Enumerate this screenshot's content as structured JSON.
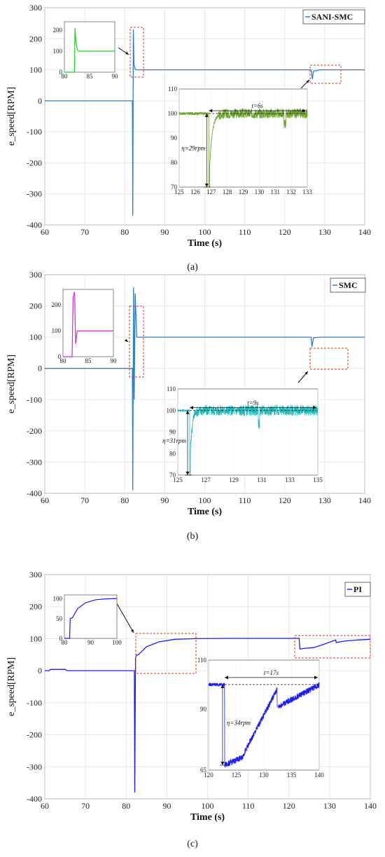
{
  "colors": {
    "sani_smc": "#2a7fd0",
    "smc": "#2a7fd0",
    "pi": "#1a1aff",
    "highlight": "#e8302a"
  },
  "chart_data": [
    {
      "type": "line",
      "caption": "(a)",
      "xlabel": "Time (s)",
      "ylabel": "e_speed[RPM]",
      "xlim": [
        60,
        140
      ],
      "ylim": [
        -400,
        300
      ],
      "xticks": [
        "60",
        "70",
        "80",
        "90",
        "100",
        "110",
        "120",
        "130",
        "140"
      ],
      "yticks": [
        "300",
        "200",
        "100",
        "0",
        "-100",
        "-200",
        "-300",
        "-400"
      ],
      "legend": "SANI-SMC",
      "legend_position": "top-right",
      "grid": true,
      "series": [
        {
          "name": "SANI-SMC",
          "x": [
            60,
            81.9,
            82.0,
            82.15,
            82.3,
            82.6,
            83,
            126.6,
            126.9,
            127.2,
            129,
            131,
            133,
            140
          ],
          "y": [
            0,
            0,
            -370,
            230,
            118,
            102,
            100,
            100,
            70,
            96,
            100,
            100,
            100,
            100
          ]
        }
      ],
      "inset_left": {
        "xlim": [
          80,
          90
        ],
        "ylim": [
          0,
          240
        ],
        "xticks": [
          "80",
          "85",
          "90"
        ],
        "yticks": [
          "0",
          "100",
          "200"
        ],
        "x": [
          80,
          82,
          82.1,
          82.3,
          82.6,
          83,
          90
        ],
        "y": [
          0,
          0,
          210,
          140,
          104,
          100,
          100
        ],
        "color": "#22cc22"
      },
      "inset_zoom": {
        "xlim": [
          125,
          133
        ],
        "ylim": [
          70,
          110
        ],
        "xticks": [
          "125",
          "126",
          "127",
          "128",
          "129",
          "130",
          "131",
          "132",
          "133"
        ],
        "yticks": [
          "110",
          "100",
          "90",
          "80",
          "70"
        ],
        "color": "#6aa02a",
        "annotations": [
          "t=6s",
          "η=29rpm"
        ]
      }
    },
    {
      "type": "line",
      "caption": "(b)",
      "xlabel": "Time (s)",
      "ylabel": "e_speed[RPM]",
      "xlim": [
        60,
        140
      ],
      "ylim": [
        -400,
        300
      ],
      "xticks": [
        "60",
        "70",
        "80",
        "90",
        "100",
        "110",
        "120",
        "130",
        "140"
      ],
      "yticks": [
        "300",
        "200",
        "100",
        "0",
        "-100",
        "-200",
        "-300",
        "-400"
      ],
      "legend": "SMC",
      "legend_position": "top-right",
      "grid": true,
      "series": [
        {
          "name": "SMC",
          "x": [
            60,
            81.9,
            82.0,
            82.2,
            82.35,
            82.6,
            83,
            126.6,
            126.8,
            127.2,
            129,
            131,
            135,
            140
          ],
          "y": [
            0,
            0,
            -390,
            260,
            -100,
            240,
            100,
            100,
            69,
            98,
            100,
            100,
            100,
            100
          ]
        }
      ],
      "inset_left": {
        "xlim": [
          80,
          90
        ],
        "ylim": [
          0,
          260
        ],
        "xticks": [
          "80",
          "85",
          "90"
        ],
        "yticks": [
          "0",
          "100",
          "200"
        ],
        "x": [
          80,
          81.8,
          82.0,
          82.3,
          82.5,
          82.8,
          90
        ],
        "y": [
          0,
          0,
          230,
          250,
          50,
          100,
          100
        ],
        "color": "#dd22dd"
      },
      "inset_zoom": {
        "xlim": [
          125,
          135
        ],
        "ylim": [
          70,
          110
        ],
        "xticks": [
          "125",
          "127",
          "129",
          "131",
          "133",
          "135"
        ],
        "yticks": [
          "110",
          "100",
          "90",
          "80",
          "70"
        ],
        "color": "#20b8b8",
        "annotations": [
          "t=9s",
          "η=31rpm"
        ]
      }
    },
    {
      "type": "line",
      "caption": "(c)",
      "xlabel": "Time (s)",
      "ylabel": "e_speed[RPM]",
      "xlim": [
        60,
        140
      ],
      "ylim": [
        -400,
        300
      ],
      "xticks": [
        "60",
        "70",
        "80",
        "90",
        "100",
        "110",
        "120",
        "130",
        "140"
      ],
      "yticks": [
        "300",
        "200",
        "100",
        "0",
        "-100",
        "-200",
        "-300",
        "-400"
      ],
      "legend": "PI",
      "legend_position": "top-right",
      "grid": true,
      "series": [
        {
          "name": "PI",
          "x": [
            60,
            61,
            61.5,
            65,
            65.5,
            82.0,
            82.1,
            82.3,
            82.5,
            83,
            85,
            88,
            92,
            97,
            105,
            122.5,
            122.7,
            124,
            126,
            128,
            131.5,
            131.6,
            134,
            137,
            140
          ],
          "y": [
            0,
            0,
            4,
            4,
            0,
            0,
            -380,
            40,
            48,
            50,
            75,
            90,
            98,
            100,
            101,
            101,
            68,
            70,
            72,
            80,
            96,
            88,
            93,
            96,
            98
          ]
        }
      ],
      "inset_left": {
        "xlim": [
          80,
          100
        ],
        "ylim": [
          0,
          110
        ],
        "xticks": [
          "80",
          "90",
          "100"
        ],
        "yticks": [
          "0",
          "50",
          "100"
        ],
        "x": [
          80,
          82,
          82.2,
          83,
          85,
          88,
          92,
          96,
          100
        ],
        "y": [
          0,
          0,
          50,
          52,
          75,
          90,
          98,
          100,
          101
        ],
        "color": "#1a1aff"
      },
      "inset_zoom": {
        "xlim": [
          120,
          140
        ],
        "ylim": [
          65,
          110
        ],
        "xticks": [
          "120",
          "125",
          "130",
          "135",
          "140"
        ],
        "yticks": [
          "110",
          "90",
          "65"
        ],
        "color": "#1a1aff",
        "annotations": [
          "t=17s",
          "η=34rpm"
        ]
      }
    }
  ]
}
